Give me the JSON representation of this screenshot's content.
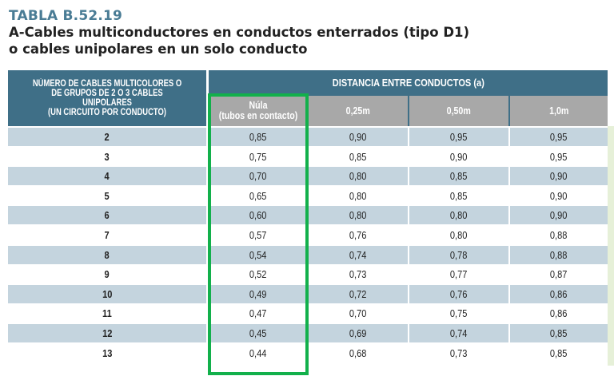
{
  "title": {
    "table_id": "TABLA B.52.19",
    "line1": "A-Cables multiconductores en conductos enterrados (tipo D1)",
    "line2": "o cables unipolares en un solo conducto"
  },
  "header": {
    "left": "NÚMERO DE CABLES MULTICOLORES O\nDE GRUPOS DE 2 O 3 CABLES UNIPOLARES\n(UN CIRCUITO POR CONDUCTO)",
    "group": "DISTANCIA ENTRE CONDUCTOS (a)",
    "columns": [
      "Núla\n(tubos en contacto)",
      "0,25m",
      "0,50m",
      "1,0m"
    ]
  },
  "highlight_color": "#12b04b",
  "rows": [
    {
      "n": "2",
      "values": [
        "0,85",
        "0,90",
        "0,95",
        "0,95"
      ]
    },
    {
      "n": "3",
      "values": [
        "0,75",
        "0,85",
        "0,90",
        "0,95"
      ]
    },
    {
      "n": "4",
      "values": [
        "0,70",
        "0,80",
        "0,85",
        "0,90"
      ]
    },
    {
      "n": "5",
      "values": [
        "0,65",
        "0,80",
        "0,85",
        "0,90"
      ]
    },
    {
      "n": "6",
      "values": [
        "0,60",
        "0,80",
        "0,80",
        "0,90"
      ]
    },
    {
      "n": "7",
      "values": [
        "0,57",
        "0,76",
        "0,80",
        "0,88"
      ]
    },
    {
      "n": "8",
      "values": [
        "0,54",
        "0,74",
        "0,78",
        "0,88"
      ]
    },
    {
      "n": "9",
      "values": [
        "0,52",
        "0,73",
        "0,77",
        "0,87"
      ]
    },
    {
      "n": "10",
      "values": [
        "0,49",
        "0,72",
        "0,76",
        "0,86"
      ]
    },
    {
      "n": "11",
      "values": [
        "0,47",
        "0,70",
        "0,75",
        "0,86"
      ]
    },
    {
      "n": "12",
      "values": [
        "0,45",
        "0,69",
        "0,74",
        "0,85"
      ]
    },
    {
      "n": "13",
      "values": [
        "0,44",
        "0,68",
        "0,73",
        "0,85"
      ]
    }
  ]
}
